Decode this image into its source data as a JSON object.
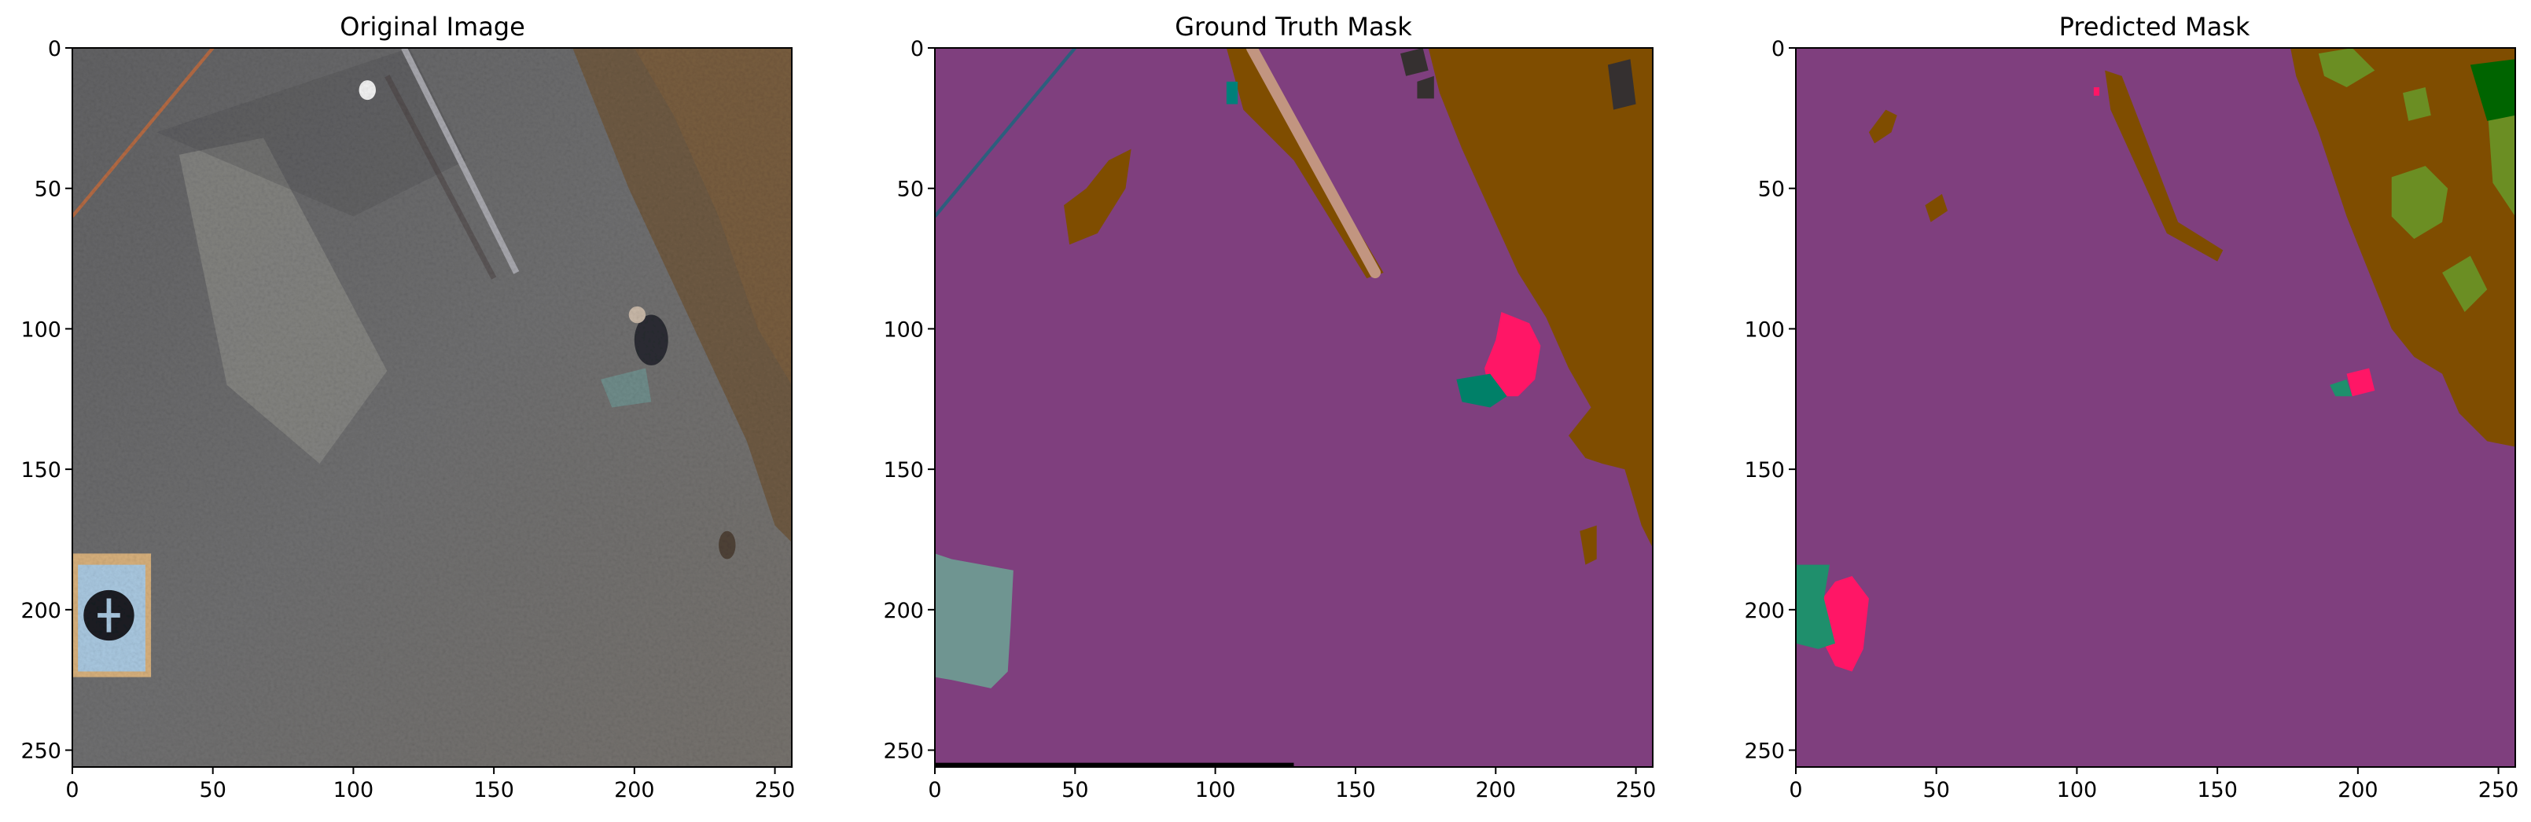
{
  "chart_data": [
    {
      "type": "image",
      "title": "Original Image",
      "xlim": [
        0,
        256
      ],
      "ylim": [
        256,
        0
      ],
      "xticks": [
        0,
        50,
        100,
        150,
        200,
        250
      ],
      "yticks": [
        0,
        50,
        100,
        150,
        200,
        250
      ],
      "grid": false,
      "colors": {
        "asphalt": "#6b6b6d",
        "asphalt_dark": "#4f4f52",
        "pale_patch": "#8a8985",
        "dirt": "#6e5a43",
        "leaves": "#7a5e3f",
        "target": "#a9c8e0",
        "tape": "#d7b07c",
        "target_mark": "#1b1d22",
        "person": "#2b2d33",
        "pole": "#a7a7ad",
        "rope": "#c76c3c",
        "ball": "#f2f2f2"
      }
    },
    {
      "type": "image",
      "title": "Ground Truth Mask",
      "xlim": [
        0,
        256
      ],
      "ylim": [
        256,
        0
      ],
      "xticks": [
        0,
        50,
        100,
        150,
        200,
        250
      ],
      "yticks": [
        0,
        50,
        100,
        150,
        200,
        250
      ],
      "grid": false,
      "colors": {
        "paved_area": "#7f3f7e",
        "dirt": "#7f4d00",
        "pole": "#c29580",
        "person": "#ff1666",
        "bicycle": "#008068",
        "target_marker": "#6f9591",
        "obstacle": "#353030",
        "small_object": "#00807a",
        "line": "#2c5f7d",
        "bottom_strip": "#000000"
      }
    },
    {
      "type": "image",
      "title": "Predicted Mask",
      "xlim": [
        0,
        256
      ],
      "ylim": [
        256,
        0
      ],
      "xticks": [
        0,
        50,
        100,
        150,
        200,
        250
      ],
      "yticks": [
        0,
        50,
        100,
        150,
        200,
        250
      ],
      "grid": false,
      "colors": {
        "paved_area": "#7f3f7e",
        "dirt": "#7f4d00",
        "grass": "#6b8e23",
        "tree": "#006400",
        "person": "#ff1666",
        "bicycle": "#1f8f6c",
        "pole_like": "#6a5040"
      }
    }
  ]
}
